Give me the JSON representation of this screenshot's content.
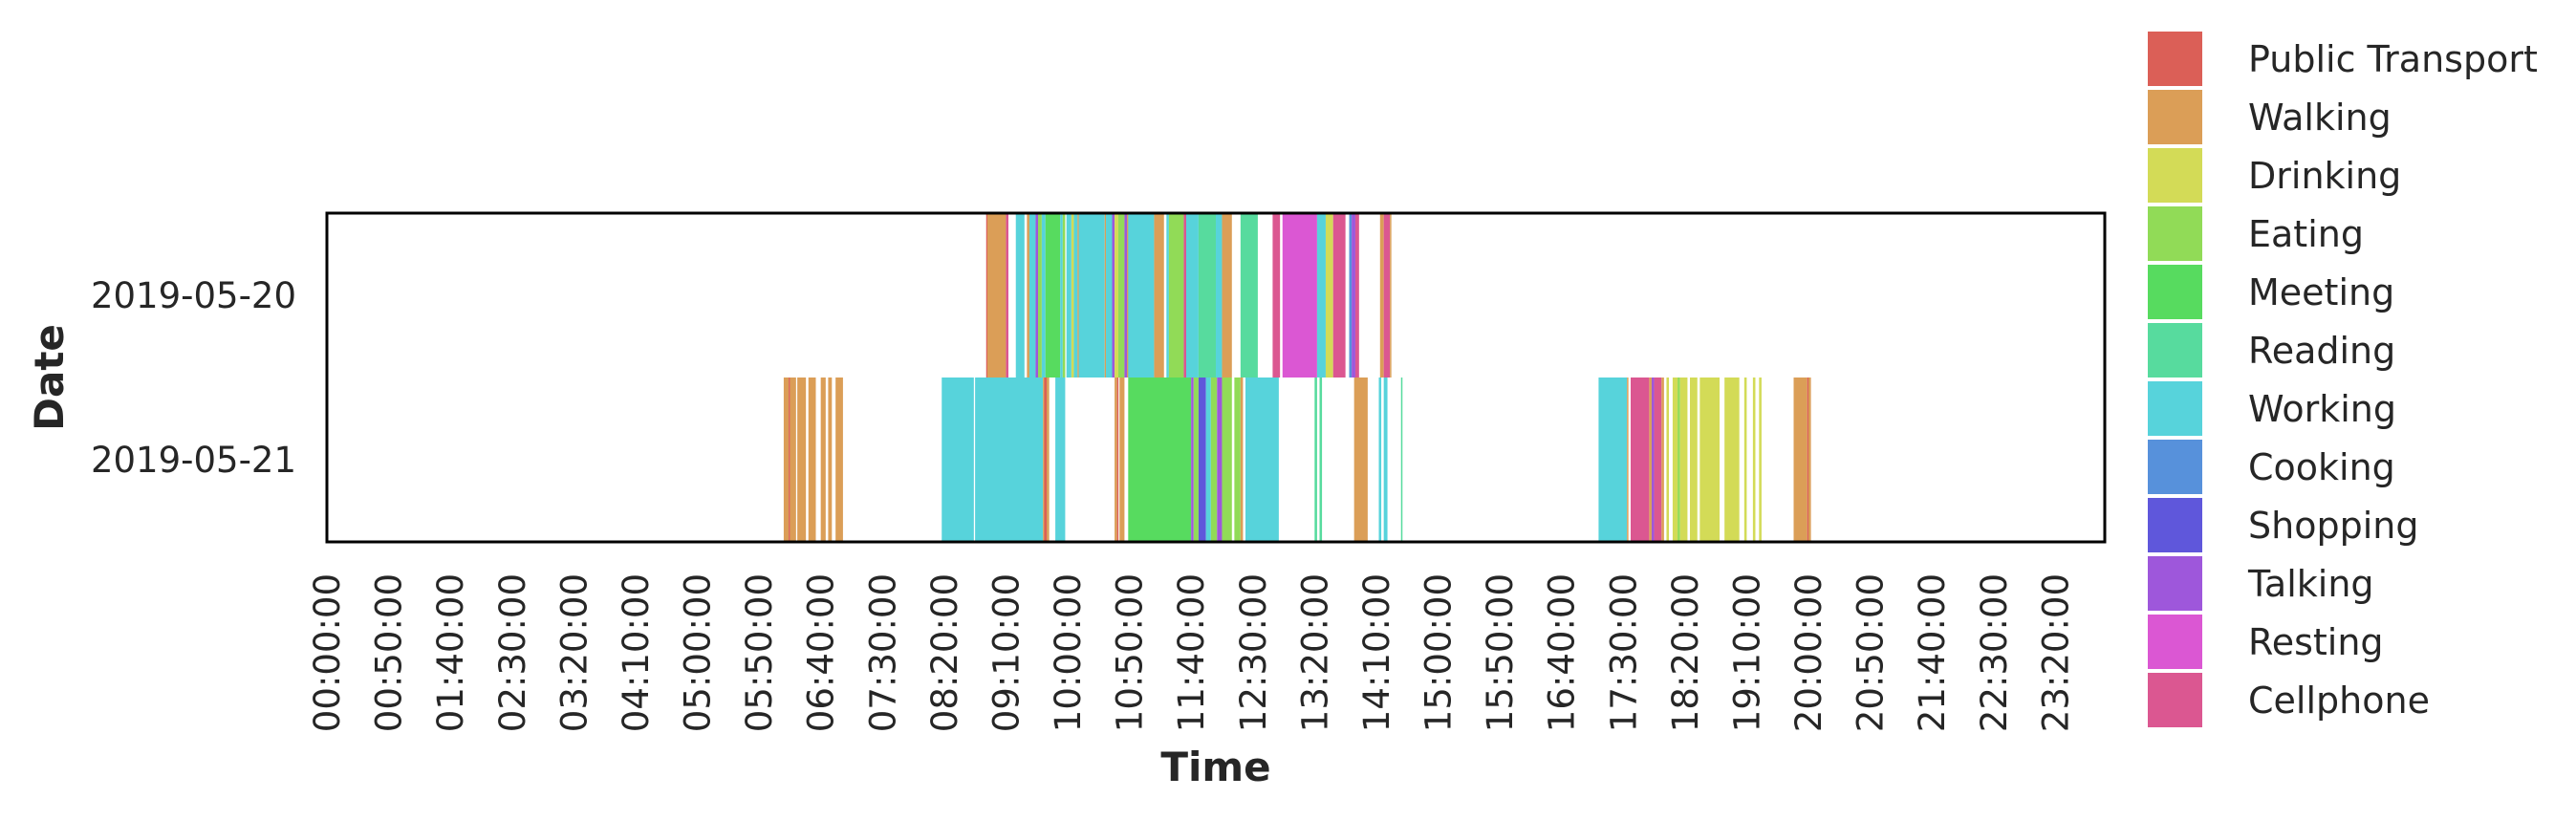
{
  "chart_data": {
    "type": "timeline",
    "xlabel": "Time",
    "ylabel": "Date",
    "dates": [
      "2019-05-20",
      "2019-05-21"
    ],
    "x_ticks": [
      "00:00:00",
      "00:50:00",
      "01:40:00",
      "02:30:00",
      "03:20:00",
      "04:10:00",
      "05:00:00",
      "05:50:00",
      "06:40:00",
      "07:30:00",
      "08:20:00",
      "09:10:00",
      "10:00:00",
      "10:50:00",
      "11:40:00",
      "12:30:00",
      "13:20:00",
      "14:10:00",
      "15:00:00",
      "15:50:00",
      "16:40:00",
      "17:30:00",
      "18:20:00",
      "19:10:00",
      "20:00:00",
      "20:50:00",
      "21:40:00",
      "22:30:00",
      "23:20:00"
    ],
    "legend_position": "right",
    "legend": [
      {
        "name": "Public Transport",
        "color": "#db5f57"
      },
      {
        "name": "Walking",
        "color": "#db9e57"
      },
      {
        "name": "Drinking",
        "color": "#d3db57"
      },
      {
        "name": "Eating",
        "color": "#91db57"
      },
      {
        "name": "Meeting",
        "color": "#57db5f"
      },
      {
        "name": "Reading",
        "color": "#57db9e"
      },
      {
        "name": "Working",
        "color": "#57d3db"
      },
      {
        "name": "Cooking",
        "color": "#5791db"
      },
      {
        "name": "Shopping",
        "color": "#5f57db"
      },
      {
        "name": "Talking",
        "color": "#9e57db"
      },
      {
        "name": "Resting",
        "color": "#db57d3"
      },
      {
        "name": "Cellphone",
        "color": "#db5791"
      }
    ],
    "segments": [
      {
        "date": "2019-05-20",
        "activity": "Public Transport",
        "start": "08:54:00",
        "end": "08:55:00"
      },
      {
        "date": "2019-05-20",
        "activity": "Walking",
        "start": "08:55:00",
        "end": "09:10:00"
      },
      {
        "date": "2019-05-20",
        "activity": "Cellphone",
        "start": "09:10:00",
        "end": "09:12:00"
      },
      {
        "date": "2019-05-20",
        "activity": "Working",
        "start": "09:18:00",
        "end": "09:25:00"
      },
      {
        "date": "2019-05-20",
        "activity": "Walking",
        "start": "09:27:00",
        "end": "09:29:00"
      },
      {
        "date": "2019-05-20",
        "activity": "Working",
        "start": "09:29:00",
        "end": "09:34:00"
      },
      {
        "date": "2019-05-20",
        "activity": "Talking",
        "start": "09:34:00",
        "end": "09:36:00"
      },
      {
        "date": "2019-05-20",
        "activity": "Eating",
        "start": "09:36:00",
        "end": "09:39:00"
      },
      {
        "date": "2019-05-20",
        "activity": "Working",
        "start": "09:39:00",
        "end": "09:42:00"
      },
      {
        "date": "2019-05-20",
        "activity": "Meeting",
        "start": "09:42:00",
        "end": "09:54:00"
      },
      {
        "date": "2019-05-20",
        "activity": "Working",
        "start": "09:54:00",
        "end": "09:56:00"
      },
      {
        "date": "2019-05-20",
        "activity": "Eating",
        "start": "09:56:00",
        "end": "09:58:00"
      },
      {
        "date": "2019-05-20",
        "activity": "Working",
        "start": "09:59:00",
        "end": "10:03:00"
      },
      {
        "date": "2019-05-20",
        "activity": "Drinking",
        "start": "10:03:00",
        "end": "10:05:00"
      },
      {
        "date": "2019-05-20",
        "activity": "Working",
        "start": "10:05:00",
        "end": "10:08:00"
      },
      {
        "date": "2019-05-20",
        "activity": "Walking",
        "start": "10:08:00",
        "end": "10:09:00"
      },
      {
        "date": "2019-05-20",
        "activity": "Working",
        "start": "10:09:00",
        "end": "10:30:00"
      },
      {
        "date": "2019-05-20",
        "activity": "Walking",
        "start": "10:30:00",
        "end": "10:31:00"
      },
      {
        "date": "2019-05-20",
        "activity": "Working",
        "start": "10:31:00",
        "end": "10:36:00"
      },
      {
        "date": "2019-05-20",
        "activity": "Talking",
        "start": "10:36:00",
        "end": "10:38:00"
      },
      {
        "date": "2019-05-20",
        "activity": "Drinking",
        "start": "10:38:00",
        "end": "10:41:00"
      },
      {
        "date": "2019-05-20",
        "activity": "Eating",
        "start": "10:41:00",
        "end": "10:46:00"
      },
      {
        "date": "2019-05-20",
        "activity": "Talking",
        "start": "10:46:00",
        "end": "10:48:00"
      },
      {
        "date": "2019-05-20",
        "activity": "Walking",
        "start": "10:48:00",
        "end": "10:49:00"
      },
      {
        "date": "2019-05-20",
        "activity": "Working",
        "start": "10:49:00",
        "end": "11:10:00"
      },
      {
        "date": "2019-05-20",
        "activity": "Walking",
        "start": "11:10:00",
        "end": "11:18:00"
      },
      {
        "date": "2019-05-20",
        "activity": "Working",
        "start": "11:20:00",
        "end": "11:22:00"
      },
      {
        "date": "2019-05-20",
        "activity": "Eating",
        "start": "11:22:00",
        "end": "11:34:00"
      },
      {
        "date": "2019-05-20",
        "activity": "Cellphone",
        "start": "11:34:00",
        "end": "11:36:00"
      },
      {
        "date": "2019-05-20",
        "activity": "Working",
        "start": "11:36:00",
        "end": "11:46:00"
      },
      {
        "date": "2019-05-20",
        "activity": "Reading",
        "start": "11:46:00",
        "end": "12:00:00"
      },
      {
        "date": "2019-05-20",
        "activity": "Working",
        "start": "12:00:00",
        "end": "12:05:00"
      },
      {
        "date": "2019-05-20",
        "activity": "Walking",
        "start": "12:05:00",
        "end": "12:13:00"
      },
      {
        "date": "2019-05-20",
        "activity": "Reading",
        "start": "12:20:00",
        "end": "12:34:00"
      },
      {
        "date": "2019-05-20",
        "activity": "Cellphone",
        "start": "12:46:00",
        "end": "12:52:00"
      },
      {
        "date": "2019-05-20",
        "activity": "Resting",
        "start": "12:54:00",
        "end": "13:22:00"
      },
      {
        "date": "2019-05-20",
        "activity": "Working",
        "start": "13:22:00",
        "end": "13:29:00"
      },
      {
        "date": "2019-05-20",
        "activity": "Drinking",
        "start": "13:29:00",
        "end": "13:35:00"
      },
      {
        "date": "2019-05-20",
        "activity": "Cellphone",
        "start": "13:35:00",
        "end": "13:45:00"
      },
      {
        "date": "2019-05-20",
        "activity": "Cooking",
        "start": "13:48:00",
        "end": "13:50:00"
      },
      {
        "date": "2019-05-20",
        "activity": "Talking",
        "start": "13:50:00",
        "end": "13:53:00"
      },
      {
        "date": "2019-05-20",
        "activity": "Cellphone",
        "start": "13:53:00",
        "end": "13:56:00"
      },
      {
        "date": "2019-05-20",
        "activity": "Walking",
        "start": "14:13:00",
        "end": "14:16:00"
      },
      {
        "date": "2019-05-20",
        "activity": "Cellphone",
        "start": "14:16:00",
        "end": "14:21:00"
      },
      {
        "date": "2019-05-20",
        "activity": "Walking",
        "start": "14:21:00",
        "end": "14:22:00"
      },
      {
        "date": "2019-05-21",
        "activity": "Walking",
        "start": "06:10:00",
        "end": "06:14:00"
      },
      {
        "date": "2019-05-21",
        "activity": "Public Transport",
        "start": "06:14:00",
        "end": "06:15:00"
      },
      {
        "date": "2019-05-21",
        "activity": "Walking",
        "start": "06:15:00",
        "end": "06:20:00"
      },
      {
        "date": "2019-05-21",
        "activity": "Walking",
        "start": "06:21:00",
        "end": "06:28:00"
      },
      {
        "date": "2019-05-21",
        "activity": "Walking",
        "start": "06:30:00",
        "end": "06:36:00"
      },
      {
        "date": "2019-05-21",
        "activity": "Walking",
        "start": "06:40:00",
        "end": "06:44:00"
      },
      {
        "date": "2019-05-21",
        "activity": "Walking",
        "start": "06:46:00",
        "end": "06:49:00"
      },
      {
        "date": "2019-05-21",
        "activity": "Walking",
        "start": "06:52:00",
        "end": "06:58:00"
      },
      {
        "date": "2019-05-21",
        "activity": "Working",
        "start": "08:18:00",
        "end": "08:44:00"
      },
      {
        "date": "2019-05-21",
        "activity": "Working",
        "start": "08:45:00",
        "end": "09:40:00"
      },
      {
        "date": "2019-05-21",
        "activity": "Walking",
        "start": "09:40:00",
        "end": "09:41:00"
      },
      {
        "date": "2019-05-21",
        "activity": "Public Transport",
        "start": "09:41:00",
        "end": "09:43:00"
      },
      {
        "date": "2019-05-21",
        "activity": "Walking",
        "start": "09:43:00",
        "end": "09:45:00"
      },
      {
        "date": "2019-05-21",
        "activity": "Working",
        "start": "09:50:00",
        "end": "09:58:00"
      },
      {
        "date": "2019-05-21",
        "activity": "Walking",
        "start": "10:38:00",
        "end": "10:40:00"
      },
      {
        "date": "2019-05-21",
        "activity": "Public Transport",
        "start": "10:40:00",
        "end": "10:41:00"
      },
      {
        "date": "2019-05-21",
        "activity": "Walking",
        "start": "10:42:00",
        "end": "10:46:00"
      },
      {
        "date": "2019-05-21",
        "activity": "Meeting",
        "start": "10:49:00",
        "end": "11:40:00"
      },
      {
        "date": "2019-05-21",
        "activity": "Talking",
        "start": "11:40:00",
        "end": "11:42:00"
      },
      {
        "date": "2019-05-21",
        "activity": "Eating",
        "start": "11:42:00",
        "end": "11:46:00"
      },
      {
        "date": "2019-05-21",
        "activity": "Shopping",
        "start": "11:46:00",
        "end": "11:52:00"
      },
      {
        "date": "2019-05-21",
        "activity": "Working",
        "start": "11:52:00",
        "end": "11:56:00"
      },
      {
        "date": "2019-05-21",
        "activity": "Eating",
        "start": "11:56:00",
        "end": "12:01:00"
      },
      {
        "date": "2019-05-21",
        "activity": "Talking",
        "start": "12:01:00",
        "end": "12:05:00"
      },
      {
        "date": "2019-05-21",
        "activity": "Eating",
        "start": "12:05:00",
        "end": "12:13:00"
      },
      {
        "date": "2019-05-21",
        "activity": "Eating",
        "start": "12:15:00",
        "end": "12:20:00"
      },
      {
        "date": "2019-05-21",
        "activity": "Walking",
        "start": "12:20:00",
        "end": "12:22:00"
      },
      {
        "date": "2019-05-21",
        "activity": "Working",
        "start": "12:24:00",
        "end": "12:51:00"
      },
      {
        "date": "2019-05-21",
        "activity": "Reading",
        "start": "13:20:00",
        "end": "13:22:00"
      },
      {
        "date": "2019-05-21",
        "activity": "Reading",
        "start": "13:24:00",
        "end": "13:26:00"
      },
      {
        "date": "2019-05-21",
        "activity": "Walking",
        "start": "13:52:00",
        "end": "14:03:00"
      },
      {
        "date": "2019-05-21",
        "activity": "Working",
        "start": "14:12:00",
        "end": "14:14:00"
      },
      {
        "date": "2019-05-21",
        "activity": "Working",
        "start": "14:16:00",
        "end": "14:19:00"
      },
      {
        "date": "2019-05-21",
        "activity": "Working",
        "start": "17:10:00",
        "end": "17:33:00"
      },
      {
        "date": "2019-05-21",
        "activity": "Walking",
        "start": "17:33:00",
        "end": "17:34:00"
      },
      {
        "date": "2019-05-21",
        "activity": "Cellphone",
        "start": "17:36:00",
        "end": "17:51:00"
      },
      {
        "date": "2019-05-21",
        "activity": "Walking",
        "start": "17:51:00",
        "end": "17:53:00"
      },
      {
        "date": "2019-05-21",
        "activity": "Talking",
        "start": "17:53:00",
        "end": "17:55:00"
      },
      {
        "date": "2019-05-21",
        "activity": "Cellphone",
        "start": "17:55:00",
        "end": "18:01:00"
      },
      {
        "date": "2019-05-21",
        "activity": "Walking",
        "start": "18:01:00",
        "end": "18:03:00"
      },
      {
        "date": "2019-05-21",
        "activity": "Drinking",
        "start": "18:05:00",
        "end": "18:07:00"
      },
      {
        "date": "2019-05-21",
        "activity": "Drinking",
        "start": "18:10:00",
        "end": "18:14:00"
      },
      {
        "date": "2019-05-21",
        "activity": "Eating",
        "start": "18:14:00",
        "end": "18:16:00"
      },
      {
        "date": "2019-05-21",
        "activity": "Drinking",
        "start": "18:16:00",
        "end": "18:22:00"
      },
      {
        "date": "2019-05-21",
        "activity": "Drinking",
        "start": "18:24:00",
        "end": "18:30:00"
      },
      {
        "date": "2019-05-21",
        "activity": "Drinking",
        "start": "18:32:00",
        "end": "18:48:00"
      },
      {
        "date": "2019-05-21",
        "activity": "Drinking",
        "start": "18:52:00",
        "end": "19:04:00"
      },
      {
        "date": "2019-05-21",
        "activity": "Drinking",
        "start": "19:08:00",
        "end": "19:10:00"
      },
      {
        "date": "2019-05-21",
        "activity": "Drinking",
        "start": "19:15:00",
        "end": "19:17:00"
      },
      {
        "date": "2019-05-21",
        "activity": "Drinking",
        "start": "19:20:00",
        "end": "19:22:00"
      },
      {
        "date": "2019-05-21",
        "activity": "Walking",
        "start": "19:48:00",
        "end": "19:59:00"
      },
      {
        "date": "2019-05-21",
        "activity": "Public Transport",
        "start": "19:59:00",
        "end": "20:00:00"
      },
      {
        "date": "2019-05-21",
        "activity": "Walking",
        "start": "20:00:00",
        "end": "20:02:00"
      },
      {
        "date": "2019-05-21",
        "activity": "Reading",
        "start": "14:30:00",
        "end": "14:31:00"
      }
    ]
  }
}
